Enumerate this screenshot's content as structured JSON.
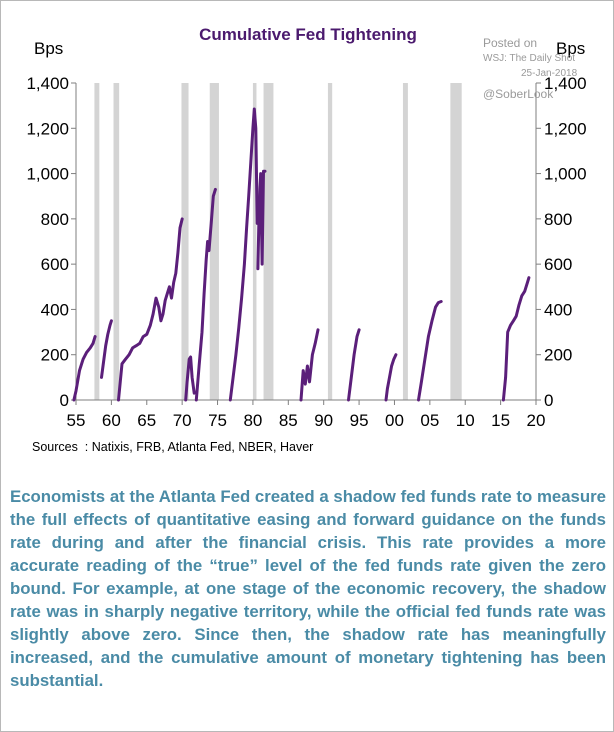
{
  "chart_data": {
    "type": "line",
    "title": "Cumulative Fed Tightening",
    "ylabel_left": "Bps",
    "ylabel_right": "Bps",
    "ylim": [
      0,
      1400
    ],
    "yticks": [
      "0",
      "200",
      "400",
      "600",
      "800",
      "1,000",
      "1,200",
      "1,400"
    ],
    "xlim": [
      1955,
      2020
    ],
    "xticks": [
      "55",
      "60",
      "65",
      "70",
      "75",
      "80",
      "85",
      "90",
      "95",
      "00",
      "05",
      "10",
      "15",
      "20"
    ],
    "grid": false,
    "legend": "none",
    "colors": {
      "line": "#5b1f7a",
      "recession": "#d4d4d4",
      "title": "#4b1a6e"
    },
    "recessions": [
      [
        1957.6,
        1958.3
      ],
      [
        1960.3,
        1961.1
      ],
      [
        1969.9,
        1970.9
      ],
      [
        1973.9,
        1975.2
      ],
      [
        1980.0,
        1980.5
      ],
      [
        1981.5,
        1982.9
      ],
      [
        1990.6,
        1991.2
      ],
      [
        2001.2,
        2001.9
      ],
      [
        2007.9,
        2009.5
      ]
    ],
    "series": [
      {
        "x": [
          1954.7,
          1955.0,
          1955.5,
          1956.0,
          1956.5,
          1957.0,
          1957.4,
          1957.7
        ],
        "y": [
          0,
          40,
          130,
          180,
          210,
          230,
          250,
          280
        ]
      },
      {
        "x": [
          1958.6,
          1958.9,
          1959.2,
          1959.5,
          1959.8,
          1960.0
        ],
        "y": [
          100,
          170,
          240,
          290,
          330,
          350
        ]
      },
      {
        "x": [
          1961.0,
          1961.5,
          1962.0,
          1962.5,
          1963.0,
          1963.5,
          1964.0,
          1964.5,
          1965.0,
          1965.5,
          1965.9,
          1966.3,
          1966.7,
          1967.0,
          1967.3,
          1967.6,
          1967.9,
          1968.2,
          1968.5,
          1968.8,
          1969.1,
          1969.4,
          1969.7,
          1970.0
        ],
        "y": [
          0,
          160,
          180,
          200,
          230,
          240,
          250,
          280,
          290,
          330,
          380,
          450,
          410,
          350,
          380,
          440,
          470,
          500,
          450,
          520,
          560,
          650,
          760,
          800
        ]
      },
      {
        "x": [
          1970.5,
          1970.7,
          1971.0,
          1971.2,
          1971.4,
          1971.7
        ],
        "y": [
          0,
          80,
          180,
          190,
          100,
          30
        ]
      },
      {
        "x": [
          1972.0,
          1972.4,
          1972.8,
          1973.1,
          1973.4,
          1973.6,
          1973.8,
          1974.1,
          1974.4,
          1974.7
        ],
        "y": [
          0,
          150,
          300,
          470,
          620,
          700,
          660,
          780,
          900,
          930
        ]
      },
      {
        "x": [
          1976.8,
          1977.2,
          1977.6,
          1978.0,
          1978.4,
          1978.8,
          1979.1,
          1979.4,
          1979.7,
          1980.0,
          1980.2,
          1980.4,
          1980.6
        ],
        "y": [
          0,
          100,
          200,
          320,
          450,
          600,
          760,
          900,
          1050,
          1200,
          1285,
          1200,
          780
        ]
      },
      {
        "x": [
          1980.7,
          1980.9,
          1981.1,
          1981.3,
          1981.5,
          1981.7
        ],
        "y": [
          580,
          880,
          1000,
          600,
          1010,
          1010
        ]
      },
      {
        "x": [
          1986.8,
          1987.1,
          1987.4,
          1987.7,
          1988.0,
          1988.4,
          1988.8,
          1989.2
        ],
        "y": [
          0,
          130,
          70,
          150,
          80,
          200,
          250,
          310
        ]
      },
      {
        "x": [
          1993.5,
          1993.9,
          1994.3,
          1994.7,
          1995.0
        ],
        "y": [
          0,
          100,
          200,
          280,
          310
        ]
      },
      {
        "x": [
          1998.8,
          1999.0,
          1999.3,
          1999.6,
          1999.9,
          2000.2
        ],
        "y": [
          0,
          50,
          100,
          150,
          180,
          200
        ]
      },
      {
        "x": [
          2003.4,
          2003.8,
          2004.3,
          2004.8,
          2005.3,
          2005.8,
          2006.2,
          2006.6
        ],
        "y": [
          0,
          80,
          180,
          280,
          350,
          410,
          430,
          435
        ]
      },
      {
        "x": [
          2015.4,
          2015.7,
          2016.0,
          2016.4,
          2016.8,
          2017.2,
          2017.6,
          2018.0,
          2018.4,
          2018.8,
          2019.0
        ],
        "y": [
          0,
          100,
          300,
          330,
          350,
          370,
          420,
          460,
          480,
          520,
          540
        ]
      }
    ]
  },
  "watermark": {
    "posted": "Posted on",
    "source": "WSJ: The Daily Shot",
    "date": "25-Jan-2018",
    "handle": "@SoberLook"
  },
  "sources": "Sources  : Natixis, FRB, Atlanta Fed, NBER, Haver",
  "caption": "Economists at the Atlanta Fed created a shadow fed funds rate to measure the full effects of quantitative easing and forward guidance on the funds rate during and after the financial crisis. This rate provides a more accurate reading of the “true” level of the fed funds rate given the zero bound. For example, at one stage of the economic recovery, the shadow rate was in sharply negative territory, while the official fed funds rate was slightly above zero. Since then, the shadow rate has meaningfully increased, and the cumulative amount of monetary tightening has been substantial."
}
